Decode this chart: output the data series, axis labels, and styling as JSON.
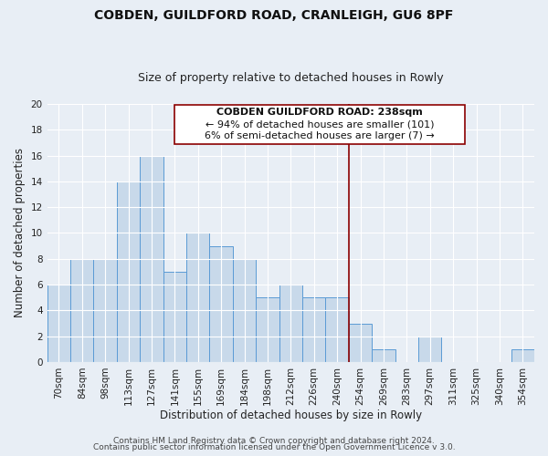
{
  "title": "COBDEN, GUILDFORD ROAD, CRANLEIGH, GU6 8PF",
  "subtitle": "Size of property relative to detached houses in Rowly",
  "xlabel": "Distribution of detached houses by size in Rowly",
  "ylabel": "Number of detached properties",
  "bar_labels": [
    "70sqm",
    "84sqm",
    "98sqm",
    "113sqm",
    "127sqm",
    "141sqm",
    "155sqm",
    "169sqm",
    "184sqm",
    "198sqm",
    "212sqm",
    "226sqm",
    "240sqm",
    "254sqm",
    "269sqm",
    "283sqm",
    "297sqm",
    "311sqm",
    "325sqm",
    "340sqm",
    "354sqm"
  ],
  "bar_values": [
    6,
    8,
    8,
    14,
    16,
    7,
    10,
    9,
    8,
    5,
    6,
    5,
    5,
    3,
    1,
    0,
    2,
    0,
    0,
    0,
    1
  ],
  "bar_color": "#c8d9ea",
  "bar_edge_color": "#5b9bd5",
  "ylim": [
    0,
    20
  ],
  "yticks": [
    0,
    2,
    4,
    6,
    8,
    10,
    12,
    14,
    16,
    18,
    20
  ],
  "vline_x": 12.5,
  "vline_color": "#8b0000",
  "annotation_title": "COBDEN GUILDFORD ROAD: 238sqm",
  "annotation_line1": "← 94% of detached houses are smaller (101)",
  "annotation_line2": "6% of semi-detached houses are larger (7) →",
  "footer1": "Contains HM Land Registry data © Crown copyright and database right 2024.",
  "footer2": "Contains public sector information licensed under the Open Government Licence v 3.0.",
  "bg_color": "#e8eef5",
  "plot_bg_color": "#e8eef5",
  "grid_color": "#ffffff",
  "title_fontsize": 10,
  "subtitle_fontsize": 9,
  "axis_label_fontsize": 8.5,
  "tick_fontsize": 7.5,
  "annotation_fontsize": 8,
  "footer_fontsize": 6.5
}
